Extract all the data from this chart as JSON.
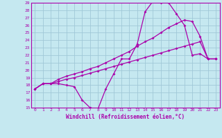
{
  "xlabel": "Windchill (Refroidissement éolien,°C)",
  "xlim": [
    -0.5,
    23.5
  ],
  "ylim": [
    15,
    29
  ],
  "yticks": [
    15,
    16,
    17,
    18,
    19,
    20,
    21,
    22,
    23,
    24,
    25,
    26,
    27,
    28,
    29
  ],
  "xticks": [
    0,
    1,
    2,
    3,
    4,
    5,
    6,
    7,
    8,
    9,
    10,
    11,
    12,
    13,
    14,
    15,
    16,
    17,
    18,
    19,
    20,
    21,
    22,
    23
  ],
  "bg_color": "#c5e8f0",
  "grid_color": "#a0c8d8",
  "line_color": "#aa00aa",
  "line1_x": [
    0,
    1,
    2,
    3,
    4,
    5,
    6,
    7,
    8,
    9,
    10,
    11,
    12,
    13,
    14,
    15,
    16,
    17,
    18,
    19,
    20,
    21,
    22,
    23
  ],
  "line1_y": [
    17.5,
    18.2,
    18.2,
    18.2,
    18.0,
    17.8,
    16.0,
    15.0,
    14.8,
    17.5,
    19.5,
    21.5,
    21.5,
    23.5,
    27.8,
    29.2,
    29.0,
    29.0,
    27.5,
    26.0,
    22.0,
    22.2,
    21.5,
    21.5
  ],
  "line2_x": [
    0,
    1,
    2,
    3,
    4,
    5,
    6,
    7,
    8,
    9,
    10,
    11,
    12,
    13,
    14,
    15,
    16,
    17,
    18,
    19,
    20,
    21,
    22,
    23
  ],
  "line2_y": [
    17.5,
    18.2,
    18.2,
    18.8,
    19.2,
    19.5,
    19.8,
    20.2,
    20.5,
    21.0,
    21.5,
    22.0,
    22.5,
    23.2,
    23.8,
    24.3,
    25.0,
    25.7,
    26.2,
    26.7,
    26.5,
    24.5,
    21.5,
    21.5
  ],
  "line3_x": [
    0,
    1,
    2,
    3,
    4,
    5,
    6,
    7,
    8,
    9,
    10,
    11,
    12,
    13,
    14,
    15,
    16,
    17,
    18,
    19,
    20,
    21,
    22,
    23
  ],
  "line3_y": [
    17.5,
    18.2,
    18.2,
    18.5,
    18.8,
    19.0,
    19.3,
    19.6,
    19.9,
    20.2,
    20.5,
    20.8,
    21.1,
    21.4,
    21.7,
    22.0,
    22.3,
    22.6,
    22.9,
    23.2,
    23.5,
    23.8,
    21.5,
    21.5
  ]
}
